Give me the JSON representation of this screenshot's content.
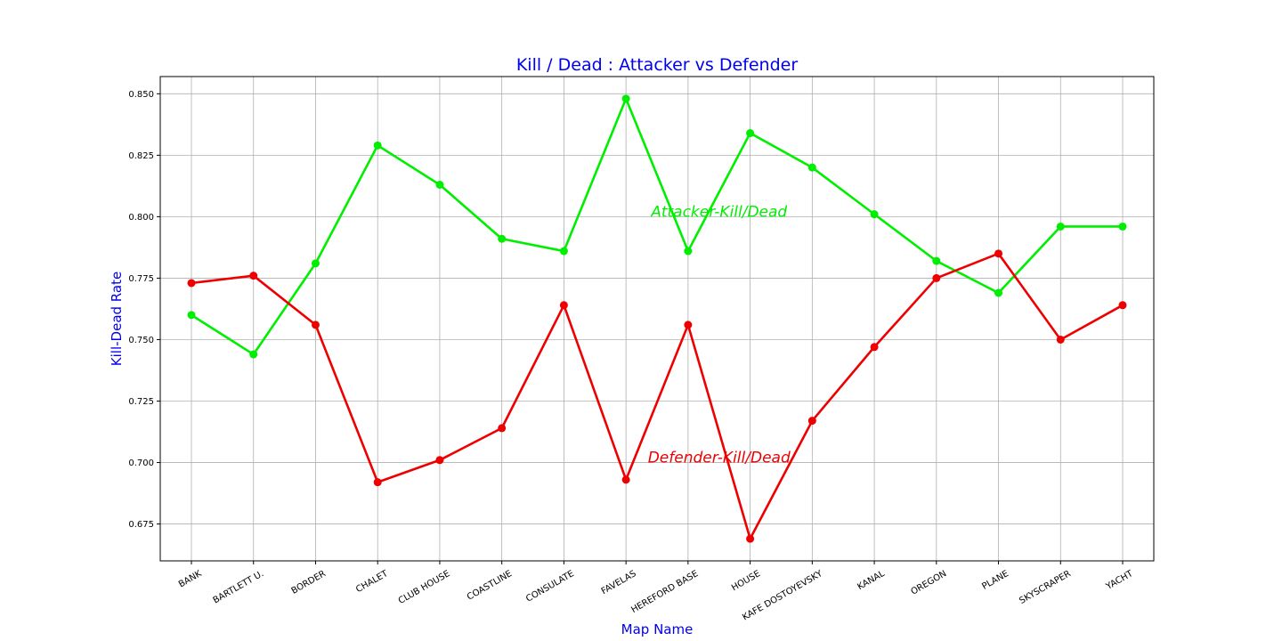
{
  "chart_data": {
    "type": "line",
    "title": "Kill / Dead : Attacker  vs  Defender",
    "xlabel": "Map Name",
    "ylabel": "Kill-Dead Rate",
    "categories": [
      "BANK",
      "BARTLETT U.",
      "BORDER",
      "CHALET",
      "CLUB HOUSE",
      "COASTLINE",
      "CONSULATE",
      "FAVELAS",
      "HEREFORD BASE",
      "HOUSE",
      "KAFE DOSTOYEVSKY",
      "KANAL",
      "OREGON",
      "PLANE",
      "SKYSCRAPER",
      "YACHT"
    ],
    "ylim": [
      0.66,
      0.857
    ],
    "yticks": [
      0.675,
      0.7,
      0.725,
      0.75,
      0.775,
      0.8,
      0.825,
      0.85
    ],
    "ytick_labels": [
      "0.675",
      "0.700",
      "0.725",
      "0.750",
      "0.775",
      "0.800",
      "0.825",
      "0.850"
    ],
    "grid": true,
    "series": [
      {
        "color": "#00ee00",
        "values": [
          0.76,
          0.744,
          0.781,
          0.829,
          0.813,
          0.791,
          0.786,
          0.848,
          0.786,
          0.834,
          0.82,
          0.801,
          0.782,
          0.769,
          0.796,
          0.796
        ]
      },
      {
        "color": "#ee0000",
        "values": [
          0.773,
          0.776,
          0.756,
          0.692,
          0.701,
          0.714,
          0.764,
          0.693,
          0.756,
          0.669,
          0.717,
          0.747,
          0.775,
          0.785,
          0.75,
          0.764
        ]
      }
    ],
    "annotations": [
      {
        "text": "Attacker-Kill/Dead",
        "color": "#00ee00",
        "x_category": 8.5,
        "y": 0.8
      },
      {
        "text": "Defender-Kill/Dead",
        "color": "#ee0000",
        "x_category": 8.5,
        "y": 0.7
      }
    ],
    "title_color": "#0000ee",
    "label_color": "#0000ee"
  }
}
